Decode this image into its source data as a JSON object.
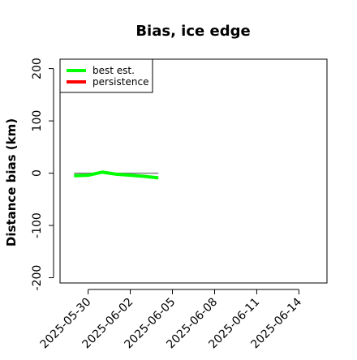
{
  "chart_data": {
    "type": "line",
    "title": "Bias, ice edge",
    "xlabel": "",
    "ylabel": "Distance bias (km)",
    "xlim": [
      "2025-05-28",
      "2025-06-16"
    ],
    "ylim": [
      -210,
      218
    ],
    "x_ticks": [
      "2025-05-30",
      "2025-06-02",
      "2025-06-05",
      "2025-06-08",
      "2025-06-11",
      "2025-06-14"
    ],
    "y_ticks": [
      -200,
      -100,
      0,
      100,
      200
    ],
    "grid": false,
    "legend_position": "top-left",
    "reference_line": {
      "y": 0,
      "x_range": [
        "2025-05-29",
        "2025-06-04"
      ],
      "color": "#808080"
    },
    "series": [
      {
        "name": "best est.",
        "color": "#00ff00",
        "x": [
          "2025-05-29",
          "2025-05-30",
          "2025-05-31",
          "2025-06-01",
          "2025-06-02",
          "2025-06-03",
          "2025-06-04"
        ],
        "y": [
          -5,
          -4,
          2,
          -2,
          -4,
          -6,
          -9
        ]
      },
      {
        "name": "persistence",
        "color": "#ff0000",
        "x": [],
        "y": []
      }
    ]
  }
}
